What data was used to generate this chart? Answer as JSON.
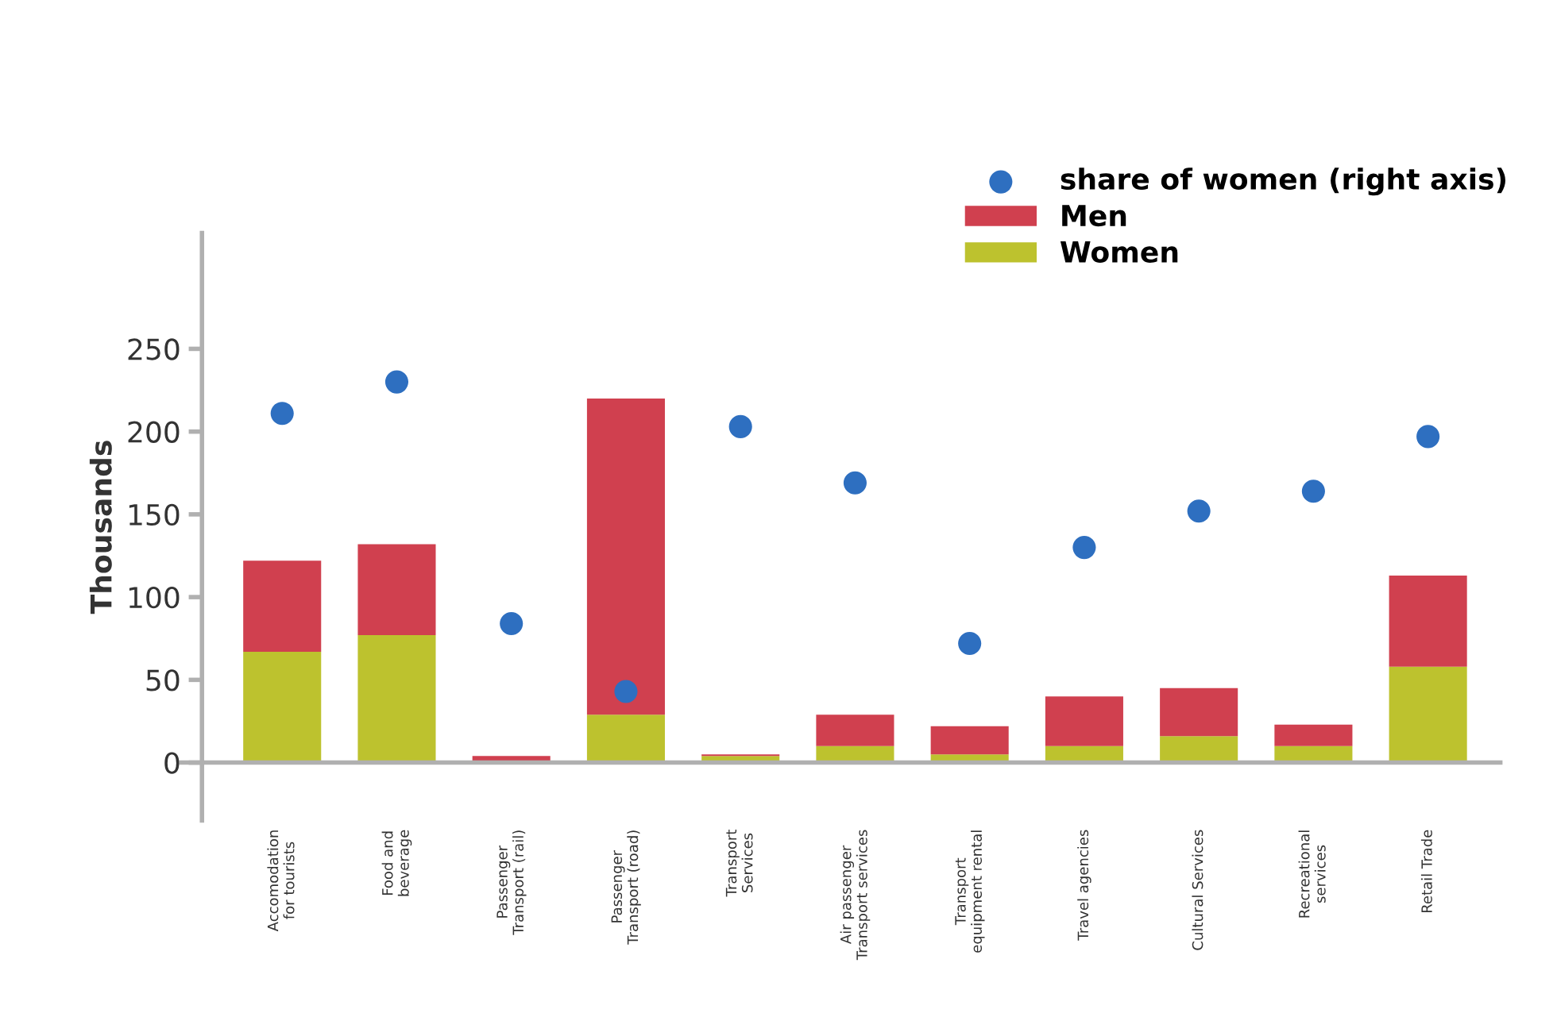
{
  "chart_data": {
    "type": "bar",
    "ylabel": "Thousands",
    "stacked": true,
    "categories": [
      "Accomodation\nfor tourists",
      "Food and\nbeverage",
      "Passenger\nTransport (rail)",
      "Passenger\nTransport (road)",
      "Transport\nServices",
      "Air passenger\nTransport services",
      "Transport\nequipment rental",
      "Travel agencies",
      "Cultural Services",
      "Recreational\nservices",
      "Retail Trade"
    ],
    "series": [
      {
        "name": "Women",
        "color": "#bdc22e",
        "values": [
          67,
          77,
          1,
          29,
          4,
          10,
          5,
          10,
          16,
          10,
          58
        ]
      },
      {
        "name": "Men",
        "color": "#d0404f",
        "values": [
          55,
          55,
          3,
          191,
          1,
          19,
          17,
          30,
          29,
          13,
          55
        ]
      },
      {
        "name": "share of women (right axis)",
        "type": "scatter",
        "color": "#2e6fc0",
        "values": [
          211,
          230,
          84,
          43,
          203,
          169,
          72,
          130,
          152,
          164,
          197
        ]
      }
    ],
    "ylim": [
      -35,
      320
    ],
    "yticks": [
      0,
      50,
      100,
      150,
      200,
      250
    ],
    "legend": "top right",
    "marker": "circle"
  }
}
